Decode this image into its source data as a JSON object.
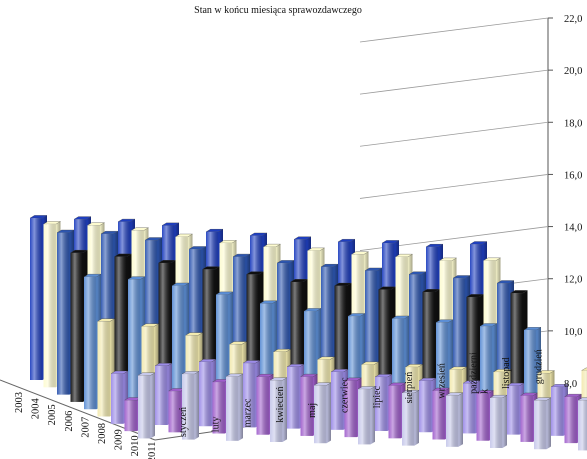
{
  "chart_data": {
    "type": "bar",
    "subtype": "3d-grouped-bar",
    "title": "Stan w końcu miesiąca sprawozdawczego",
    "xlabel": "",
    "ylabel": "",
    "ylim": [
      8.0,
      22.0
    ],
    "yticks": [
      "8,0",
      "10,0",
      "12,0",
      "14,0",
      "16,0",
      "18,0",
      "20,0",
      "22,0"
    ],
    "y_axis_side": "right",
    "grid": true,
    "legend": "none",
    "categories": [
      "styczeń",
      "luty",
      "marzec",
      "kwiecień",
      "maj",
      "czerwiec",
      "lipiec",
      "sierpień",
      "wrzesień",
      "październik",
      "listopad",
      "grudzień"
    ],
    "category_labels": [
      "styczeń",
      "luty",
      "marzec",
      "kwiecień",
      "maj",
      "czerwiec",
      "lipiec",
      "sierpień",
      "wrzesień",
      "październi\nk",
      "listopad",
      "grudzień"
    ],
    "series": [
      {
        "name": "2003",
        "color": "#1f3fbf",
        "values": [
          20.6,
          20.6,
          20.5,
          20.3,
          19.9,
          19.7,
          19.5,
          19.4,
          19.4,
          19.2,
          19.5,
          null
        ]
      },
      {
        "name": "2004",
        "color": "#fdfbd0",
        "values": [
          20.7,
          20.7,
          20.4,
          20.0,
          19.6,
          19.4,
          19.2,
          19.0,
          18.9,
          18.7,
          18.8,
          null
        ]
      },
      {
        "name": "2005",
        "color": "#2d56b0",
        "values": [
          20.6,
          20.6,
          20.2,
          19.6,
          19.1,
          18.7,
          18.5,
          18.3,
          18.1,
          17.9,
          17.6,
          null
        ]
      },
      {
        "name": "2006",
        "color": "#101010",
        "values": [
          19.6,
          19.4,
          19.0,
          18.6,
          18.3,
          17.8,
          17.6,
          17.4,
          17.3,
          17.0,
          17.4,
          null
        ]
      },
      {
        "name": "2007",
        "color": "#5c8ed4",
        "values": [
          18.3,
          18.2,
          17.8,
          17.2,
          16.6,
          16.1,
          15.8,
          15.7,
          15.5,
          15.3,
          15.1,
          null
        ]
      },
      {
        "name": "2008",
        "color": "#f2eaaf",
        "values": [
          15.4,
          15.1,
          14.5,
          13.9,
          13.4,
          12.9,
          12.6,
          12.5,
          12.4,
          12.3,
          12.3,
          12.6
        ]
      },
      {
        "name": "2009",
        "color": "#9c8ce8",
        "values": [
          11.9,
          12.6,
          13.0,
          13.0,
          12.8,
          12.5,
          12.2,
          12.0,
          11.9,
          11.8,
          11.8,
          12.3
        ]
      },
      {
        "name": "2010",
        "color": "#a05fcc",
        "values": [
          10.4,
          11.2,
          12.0,
          12.5,
          12.6,
          12.4,
          12.1,
          11.8,
          11.7,
          11.6,
          11.6,
          12.2
        ]
      },
      {
        "name": "2011",
        "color": "#c6c8ea",
        "values": [
          12.9,
          13.1,
          13.0,
          12.8,
          12.5,
          12.3,
          12.1,
          12.0,
          11.9,
          11.8,
          11.9,
          12.1
        ]
      }
    ],
    "note": "Values estimated from the 3D rendering."
  }
}
